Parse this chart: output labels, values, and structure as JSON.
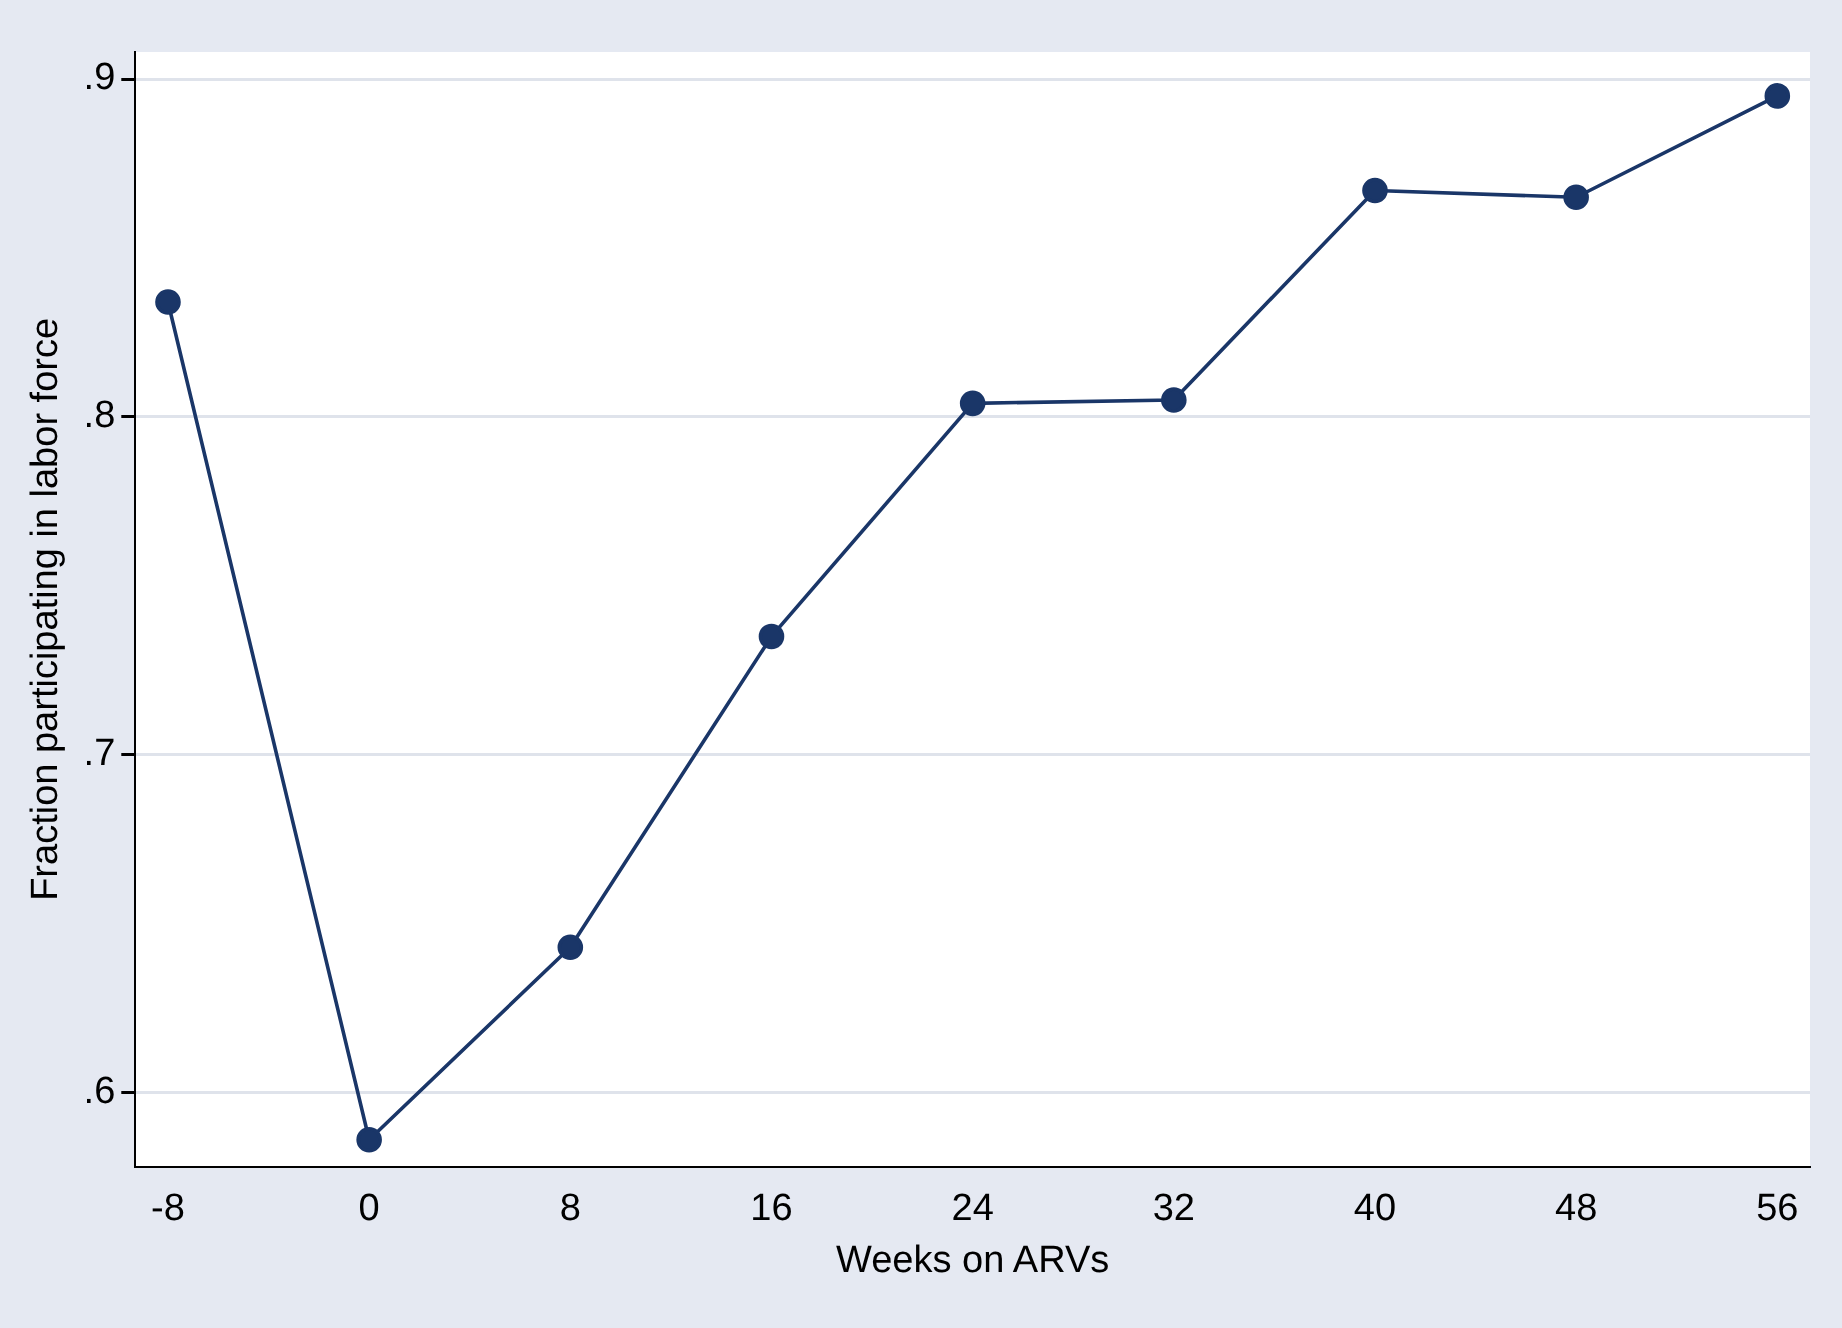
{
  "chart_data": {
    "type": "line",
    "xlabel": "Weeks on ARVs",
    "ylabel": "Fraction participating in labor force",
    "x": [
      -8,
      0,
      8,
      16,
      24,
      32,
      40,
      48,
      56
    ],
    "series": [
      {
        "color": "#1a3668",
        "values": [
          0.834,
          0.586,
          0.643,
          0.735,
          0.804,
          0.805,
          0.867,
          0.865,
          0.895
        ]
      }
    ],
    "xlim": [
      -9.3,
      57.3
    ],
    "ylim": [
      0.578,
      0.908
    ],
    "xticks": [
      -8,
      0,
      8,
      16,
      24,
      32,
      40,
      48,
      56
    ],
    "yticks": [
      {
        "value": 0.6,
        "label": ".6"
      },
      {
        "value": 0.7,
        "label": ".7"
      },
      {
        "value": 0.8,
        "label": ".8"
      },
      {
        "value": 0.9,
        "label": ".9"
      }
    ],
    "grid": "y",
    "marker": "circle",
    "line_style": "solid"
  }
}
